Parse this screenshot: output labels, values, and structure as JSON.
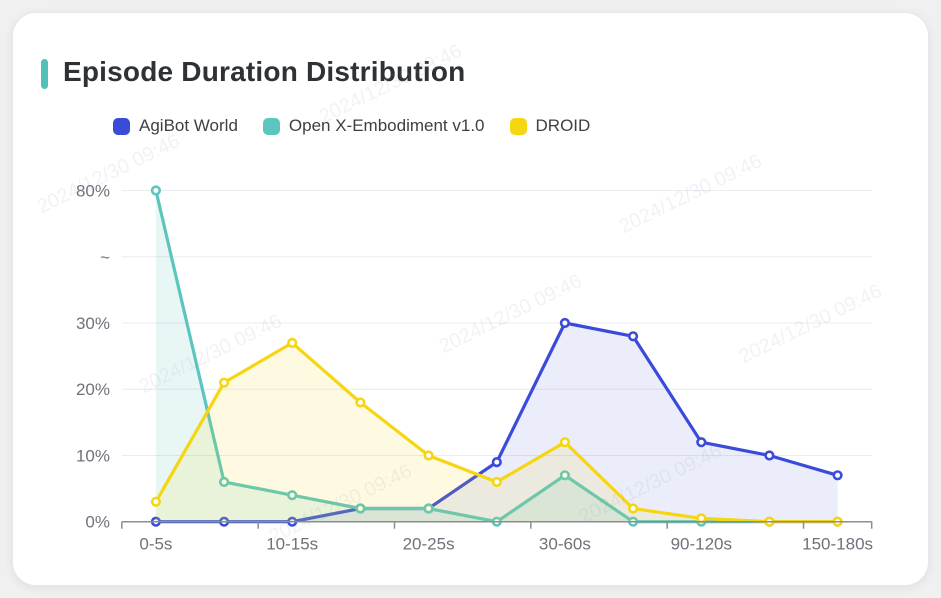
{
  "title": {
    "text": "Episode Duration Distribution",
    "accent_color": "#53C0B8"
  },
  "legend": {
    "items": [
      {
        "label": "AgiBot World",
        "color": "#3A4AD9"
      },
      {
        "label": "Open X-Embodiment v1.0",
        "color": "#5CC5BE"
      },
      {
        "label": "DROID",
        "color": "#F6D511"
      }
    ]
  },
  "watermark": {
    "text": "2024/12/30 09:46"
  },
  "colors": {
    "grid_line": "#E8ECF3",
    "axis_line": "#8A8D92",
    "axis_label": "#6F727A",
    "title_text": "#2E3136",
    "card_background": "#FFFFFF",
    "page_background": "#F0F0F0"
  },
  "chart_data": {
    "type": "line",
    "title": "Episode Duration Distribution",
    "categories_count": 11,
    "x_tick_labels": [
      "0-5s",
      "10-15s",
      "20-25s",
      "30-60s",
      "90-120s",
      "150-180s"
    ],
    "x_labeled_category_indexes": [
      0,
      2,
      4,
      6,
      8,
      10
    ],
    "y_axis": {
      "ticks": [
        "0%",
        "10%",
        "20%",
        "30%",
        "~",
        "80%"
      ],
      "break_between": [
        30,
        80
      ],
      "unit": "%"
    },
    "grid": true,
    "area_fill": true,
    "legend_position": "top",
    "series": [
      {
        "name": "AgiBot World",
        "color": "#3A4AD9",
        "fill": "rgba(58,74,217,0.10)",
        "values": [
          0,
          0,
          0,
          2,
          2,
          9,
          30,
          28,
          12,
          10,
          7
        ]
      },
      {
        "name": "Open X-Embodiment v1.0",
        "color": "#5CC5BE",
        "fill": "rgba(92,197,190,0.14)",
        "values": [
          80,
          6,
          4,
          2,
          2,
          0,
          7,
          0,
          0,
          0,
          0
        ]
      },
      {
        "name": "DROID",
        "color": "#F6D511",
        "fill": "rgba(246,213,17,0.12)",
        "values": [
          3,
          21,
          27,
          18,
          10,
          6,
          12,
          2,
          0.5,
          0,
          0
        ]
      }
    ]
  }
}
